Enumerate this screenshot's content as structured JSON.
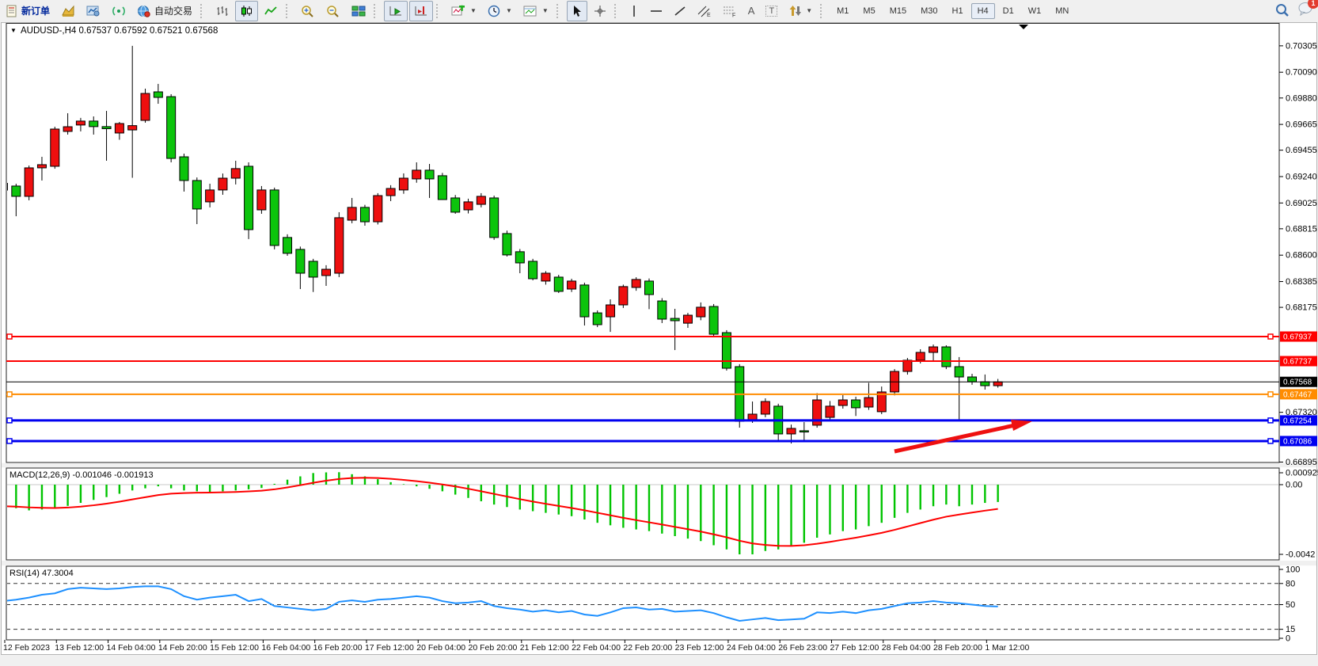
{
  "toolbar": {
    "new_order_label": "新订单",
    "autotrade_label": "自动交易",
    "timeframes": [
      "M1",
      "M5",
      "M15",
      "M30",
      "H1",
      "H4",
      "D1",
      "W1",
      "MN"
    ],
    "active_timeframe": "H4",
    "notification_badge": "1"
  },
  "chart": {
    "symbol_title": "AUDUSD-,H4",
    "ohlc_text": "0.67537 0.67592 0.67521 0.67568",
    "colors": {
      "bull": "#ee0f0f",
      "bear": "#0cc40c",
      "wick": "#000000",
      "line_red": "#fe0000",
      "line_orange": "#ff8c00",
      "line_blue": "#0000f0",
      "bid_black": "#000000",
      "macd_hist": "#00c400",
      "macd_signal": "#fe0000",
      "rsi_line": "#1e90ff",
      "arrow_red": "#ee1010"
    }
  },
  "price_axis": {
    "ticks": [
      "0.70305",
      "0.70090",
      "0.69880",
      "0.69665",
      "0.69455",
      "0.69240",
      "0.69025",
      "0.68815",
      "0.68600",
      "0.68385",
      "0.68175",
      "0.67320",
      "0.66895"
    ]
  },
  "line_objects": [
    {
      "label": "0.67937",
      "price": 0.67937,
      "color": "#fe0000",
      "width": 2,
      "handles": true,
      "name": "resistance-line-1"
    },
    {
      "label": "0.67737",
      "price": 0.67737,
      "color": "#fe0000",
      "width": 2,
      "handles": false,
      "name": "resistance-line-2"
    },
    {
      "label": "0.67568",
      "price": 0.67568,
      "color": "#000000",
      "width": 1,
      "handles": false,
      "name": "bid-price-line"
    },
    {
      "label": "0.67467",
      "price": 0.67467,
      "color": "#ff8c00",
      "width": 2,
      "handles": true,
      "name": "pivot-line"
    },
    {
      "label": "0.67254",
      "price": 0.67254,
      "color": "#0000f0",
      "width": 3,
      "handles": true,
      "name": "support-line-1"
    },
    {
      "label": "0.67086",
      "price": 0.67086,
      "color": "#0000f0",
      "width": 3,
      "handles": true,
      "name": "support-line-2"
    }
  ],
  "time_axis": {
    "labels": [
      "12 Feb 2023",
      "13 Feb 12:00",
      "14 Feb 04:00",
      "14 Feb 20:00",
      "15 Feb 12:00",
      "16 Feb 04:00",
      "16 Feb 20:00",
      "17 Feb 12:00",
      "20 Feb 04:00",
      "20 Feb 20:00",
      "21 Feb 12:00",
      "22 Feb 04:00",
      "22 Feb 20:00",
      "23 Feb 12:00",
      "24 Feb 04:00",
      "26 Feb 23:00",
      "27 Feb 12:00",
      "28 Feb 04:00",
      "28 Feb 20:00",
      "1 Mar 12:00"
    ]
  },
  "indicators": {
    "macd": {
      "label": "MACD(12,26,9) -0.001046 -0.001913",
      "axis": [
        "0.000925",
        "0.00",
        "-0.0042"
      ]
    },
    "rsi": {
      "label": "RSI(14) 47.3004",
      "axis": [
        "100",
        "80",
        "50",
        "15",
        "0"
      ],
      "levels": [
        80,
        50,
        15
      ]
    }
  },
  "chart_data": {
    "type": "candlestick",
    "symbol": "AUDUSD-",
    "timeframe": "H4",
    "title": "AUDUSD-,H4 0.67537 0.67592 0.67521 0.67568",
    "current_ohlc": {
      "open": 0.67537,
      "high": 0.67592,
      "low": 0.67521,
      "close": 0.67568
    },
    "y_axis_range": [
      0.66912,
      0.7048
    ],
    "horizontal_levels": [
      0.67937,
      0.67737,
      0.67568,
      0.67467,
      0.67254,
      0.67086
    ],
    "candles": [
      [
        0.69185,
        0.6921,
        0.69095,
        0.6913
      ],
      [
        0.69163,
        0.69182,
        0.68917,
        0.69079
      ],
      [
        0.69079,
        0.6933,
        0.69047,
        0.69311
      ],
      [
        0.69311,
        0.69401,
        0.69208,
        0.69337
      ],
      [
        0.69324,
        0.69646,
        0.69304,
        0.69627
      ],
      [
        0.69608,
        0.69756,
        0.69582,
        0.69646
      ],
      [
        0.6966,
        0.69718,
        0.69608,
        0.69692
      ],
      [
        0.69692,
        0.6973,
        0.69582,
        0.69647
      ],
      [
        0.69647,
        0.69775,
        0.69369,
        0.6963
      ],
      [
        0.69595,
        0.69685,
        0.6954,
        0.69672
      ],
      [
        0.6962,
        0.70305,
        0.6923,
        0.69655
      ],
      [
        0.69698,
        0.69956,
        0.69679,
        0.69917
      ],
      [
        0.6993,
        0.69995,
        0.69833,
        0.69885
      ],
      [
        0.69891,
        0.69911,
        0.69356,
        0.69388
      ],
      [
        0.69401,
        0.69427,
        0.69118,
        0.69208
      ],
      [
        0.69208,
        0.69233,
        0.68853,
        0.68976
      ],
      [
        0.69034,
        0.69182,
        0.68989,
        0.69131
      ],
      [
        0.69131,
        0.69265,
        0.69092,
        0.69227
      ],
      [
        0.69227,
        0.69369,
        0.69176,
        0.69305
      ],
      [
        0.69324,
        0.69356,
        0.68731,
        0.68808
      ],
      [
        0.68969,
        0.69163,
        0.68937,
        0.69131
      ],
      [
        0.69131,
        0.6915,
        0.68647,
        0.68679
      ],
      [
        0.68744,
        0.6877,
        0.68595,
        0.68615
      ],
      [
        0.68647,
        0.6867,
        0.68324,
        0.68453
      ],
      [
        0.6855,
        0.6857,
        0.683,
        0.68421
      ],
      [
        0.68434,
        0.68518,
        0.6835,
        0.68485
      ],
      [
        0.68453,
        0.6895,
        0.68421,
        0.68905
      ],
      [
        0.68885,
        0.69066,
        0.6886,
        0.68989
      ],
      [
        0.68989,
        0.6901,
        0.6884,
        0.68872
      ],
      [
        0.68872,
        0.69105,
        0.6885,
        0.69085
      ],
      [
        0.69085,
        0.6917,
        0.6904,
        0.69143
      ],
      [
        0.69131,
        0.69266,
        0.691,
        0.69227
      ],
      [
        0.69221,
        0.69356,
        0.6919,
        0.69292
      ],
      [
        0.69292,
        0.69343,
        0.69066,
        0.69221
      ],
      [
        0.69247,
        0.6927,
        0.6905,
        0.69053
      ],
      [
        0.69066,
        0.6909,
        0.68937,
        0.6895
      ],
      [
        0.68969,
        0.6906,
        0.6894,
        0.69034
      ],
      [
        0.69014,
        0.69105,
        0.68989,
        0.69079
      ],
      [
        0.69066,
        0.69085,
        0.68725,
        0.68744
      ],
      [
        0.68776,
        0.688,
        0.68589,
        0.68602
      ],
      [
        0.68628,
        0.6865,
        0.68453,
        0.68537
      ],
      [
        0.6855,
        0.6857,
        0.68395,
        0.68408
      ],
      [
        0.68389,
        0.6847,
        0.6836,
        0.68453
      ],
      [
        0.68421,
        0.6844,
        0.68292,
        0.68305
      ],
      [
        0.68324,
        0.68408,
        0.683,
        0.68389
      ],
      [
        0.68357,
        0.68376,
        0.68027,
        0.68098
      ],
      [
        0.6813,
        0.6815,
        0.68014,
        0.68034
      ],
      [
        0.68098,
        0.6824,
        0.67975,
        0.68195
      ],
      [
        0.68195,
        0.6836,
        0.6817,
        0.68344
      ],
      [
        0.68337,
        0.6842,
        0.6831,
        0.68402
      ],
      [
        0.68389,
        0.6841,
        0.6816,
        0.68279
      ],
      [
        0.68227,
        0.6825,
        0.68047,
        0.68079
      ],
      [
        0.68085,
        0.68163,
        0.67827,
        0.68066
      ],
      [
        0.68046,
        0.6813,
        0.68008,
        0.68111
      ],
      [
        0.68098,
        0.68215,
        0.6807,
        0.68176
      ],
      [
        0.68182,
        0.68202,
        0.67937,
        0.67956
      ],
      [
        0.67969,
        0.67989,
        0.6766,
        0.67679
      ],
      [
        0.67692,
        0.67712,
        0.67195,
        0.67247
      ],
      [
        0.6726,
        0.67408,
        0.67234,
        0.67305
      ],
      [
        0.67305,
        0.67434,
        0.6728,
        0.67408
      ],
      [
        0.6737,
        0.6739,
        0.67092,
        0.67144
      ],
      [
        0.67144,
        0.6722,
        0.67066,
        0.67189
      ],
      [
        0.6717,
        0.6724,
        0.67079,
        0.6716
      ],
      [
        0.67215,
        0.67476,
        0.67195,
        0.67421
      ],
      [
        0.67279,
        0.67412,
        0.6726,
        0.6737
      ],
      [
        0.67376,
        0.6746,
        0.6735,
        0.67421
      ],
      [
        0.67421,
        0.67447,
        0.6729,
        0.67357
      ],
      [
        0.67363,
        0.6756,
        0.6734,
        0.6744
      ],
      [
        0.67325,
        0.6753,
        0.67305,
        0.67486
      ],
      [
        0.67486,
        0.67672,
        0.67458,
        0.67653
      ],
      [
        0.67653,
        0.67763,
        0.67627,
        0.67744
      ],
      [
        0.67744,
        0.67834,
        0.67718,
        0.67808
      ],
      [
        0.67808,
        0.67872,
        0.67737,
        0.67853
      ],
      [
        0.67853,
        0.67866,
        0.67672,
        0.67692
      ],
      [
        0.67692,
        0.6777,
        0.6726,
        0.67608
      ],
      [
        0.67608,
        0.67634,
        0.67544,
        0.67569
      ],
      [
        0.67569,
        0.67628,
        0.67505,
        0.67537
      ],
      [
        0.67537,
        0.67592,
        0.67521,
        0.67568
      ]
    ],
    "macd_histogram": [
      -0.0013,
      -0.00142,
      -0.00155,
      -0.0015,
      -0.00145,
      -0.00128,
      -0.0011,
      -0.00092,
      -0.00075,
      -0.00055,
      -0.00035,
      -0.00022,
      -0.0001,
      -0.00022,
      -0.00035,
      -0.0004,
      -0.00045,
      -0.0004,
      -0.00035,
      -0.00028,
      -0.0002,
      5e-05,
      0.0003,
      0.0005,
      0.0007,
      0.00074,
      0.00075,
      0.00063,
      0.0005,
      0.00033,
      0.00015,
      3e-05,
      -0.0001,
      -0.00025,
      -0.0004,
      -0.0006,
      -0.0008,
      -0.001,
      -0.0012,
      -0.00135,
      -0.0015,
      -0.0016,
      -0.0017,
      -0.0018,
      -0.0019,
      -0.0021,
      -0.0023,
      -0.00245,
      -0.0026,
      -0.0027,
      -0.0028,
      -0.00295,
      -0.0031,
      -0.00325,
      -0.0034,
      -0.00365,
      -0.0039,
      -0.0042,
      -0.0042,
      -0.004,
      -0.0039,
      -0.0037,
      -0.0035,
      -0.0032,
      -0.003,
      -0.0028,
      -0.0027,
      -0.0025,
      -0.0023,
      -0.002,
      -0.0017,
      -0.0015,
      -0.0013,
      -0.0012,
      -0.0013,
      -0.0012,
      -0.0011,
      -0.001046
    ],
    "rsi_values": [
      55,
      57,
      60,
      64,
      66,
      72,
      74,
      73,
      72,
      73,
      75,
      76,
      76,
      72,
      62,
      57,
      60,
      62,
      64,
      55,
      58,
      48,
      46,
      44,
      42,
      44,
      54,
      56,
      54,
      57,
      58,
      60,
      62,
      60,
      55,
      52,
      53,
      55,
      48,
      45,
      43,
      40,
      42,
      39,
      41,
      36,
      34,
      39,
      45,
      46,
      43,
      44,
      40,
      41,
      42,
      38,
      32,
      27,
      29,
      31,
      28,
      29,
      30,
      39,
      38,
      40,
      38,
      42,
      44,
      48,
      52,
      53,
      55,
      53,
      52,
      50,
      48,
      47.3
    ]
  }
}
